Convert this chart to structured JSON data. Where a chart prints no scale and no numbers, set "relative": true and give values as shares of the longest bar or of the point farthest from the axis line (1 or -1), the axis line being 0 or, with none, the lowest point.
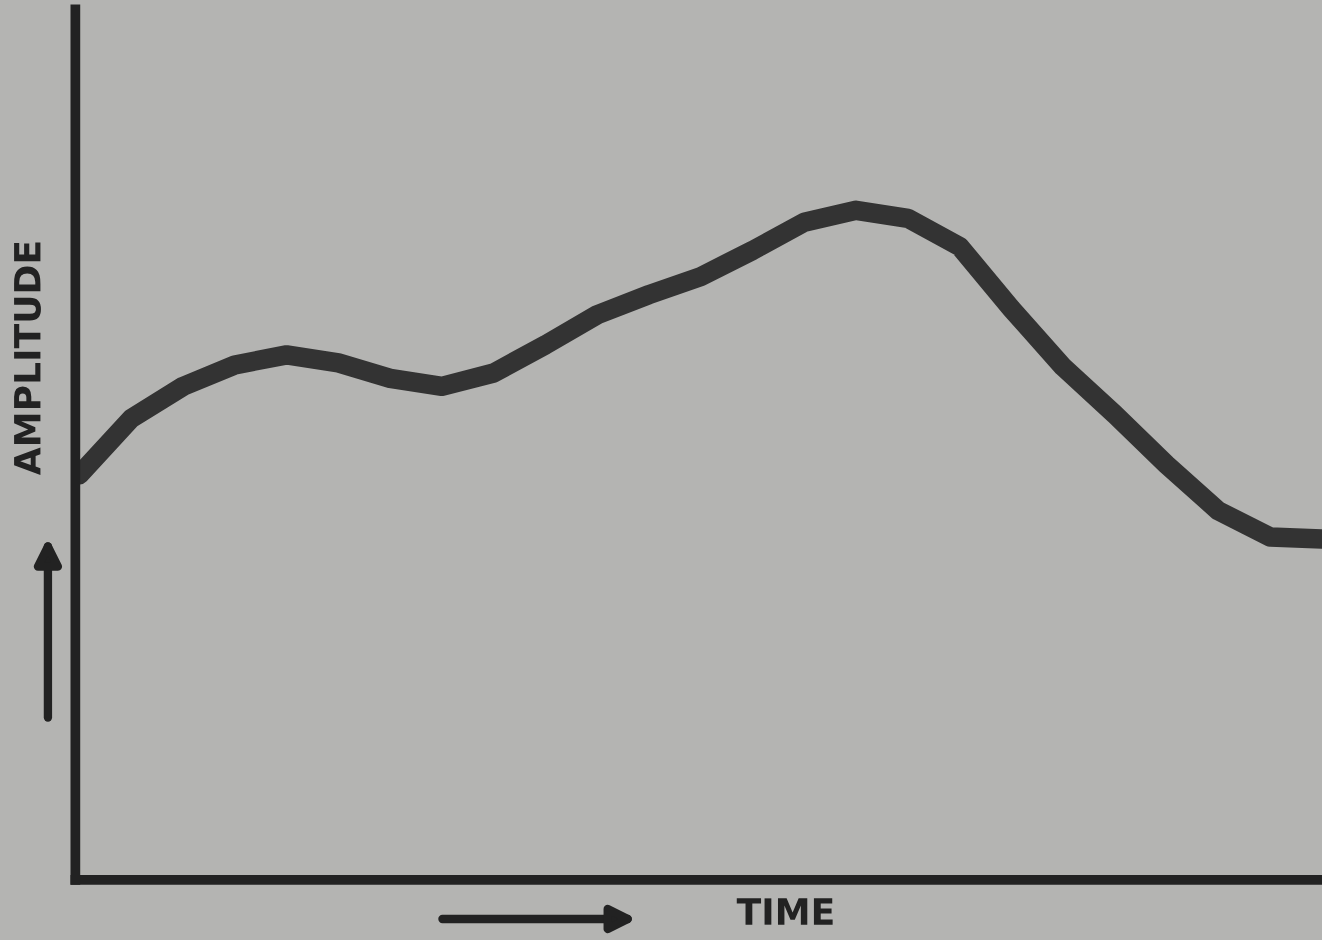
{
  "chart_data": {
    "type": "line",
    "xlabel": "TIME",
    "ylabel": "AMPLITUDE",
    "relative": true,
    "categories": [
      null,
      null,
      null,
      null,
      null,
      null,
      null,
      null,
      null,
      null,
      null,
      null,
      null,
      null,
      null,
      null,
      null,
      null,
      null,
      null,
      null,
      null,
      null,
      null,
      null
    ],
    "series": [
      {
        "color": "#333333",
        "values": [
          0.605,
          0.689,
          0.737,
          0.769,
          0.784,
          0.772,
          0.749,
          0.737,
          0.757,
          0.799,
          0.844,
          0.874,
          0.901,
          0.94,
          0.982,
          1.0,
          0.988,
          0.946,
          0.853,
          0.766,
          0.695,
          0.62,
          0.551,
          0.512,
          0.509
        ]
      }
    ],
    "marker": "none",
    "line_style": "solid"
  }
}
